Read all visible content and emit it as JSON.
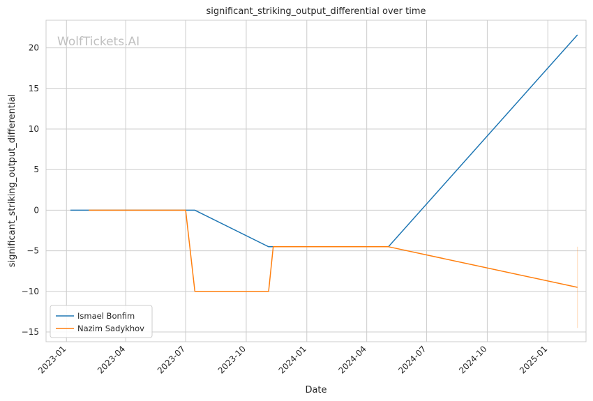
{
  "chart_data": {
    "type": "line",
    "title": "significant_striking_output_differential over time",
    "xlabel": "Date",
    "ylabel": "significant_striking_output_differential",
    "watermark": "WolfTickets.AI",
    "xlim": [
      "2022-12-01",
      "2025-02-28"
    ],
    "ylim": [
      -16.2,
      23.4
    ],
    "x_ticks": [
      "2023-01",
      "2023-04",
      "2023-07",
      "2023-10",
      "2024-01",
      "2024-04",
      "2024-07",
      "2024-10",
      "2025-01"
    ],
    "y_ticks": [
      -15,
      -10,
      -5,
      0,
      5,
      10,
      15,
      20
    ],
    "y_tick_labels": [
      "−15",
      "−10",
      "−5",
      "0",
      "5",
      "10",
      "15",
      "20"
    ],
    "grid": true,
    "legend_position": "lower-left",
    "series": [
      {
        "name": "Ismael Bonfim",
        "color": "#1f77b4",
        "points": [
          {
            "x": "2023-01-07",
            "y": 0
          },
          {
            "x": "2023-07-15",
            "y": 0
          },
          {
            "x": "2023-11-04",
            "y": -4.5
          },
          {
            "x": "2024-05-04",
            "y": -4.5
          },
          {
            "x": "2025-02-15",
            "y": 21.6
          }
        ]
      },
      {
        "name": "Nazim Sadykhov",
        "color": "#ff7f0e",
        "points": [
          {
            "x": "2023-02-04",
            "y": 0
          },
          {
            "x": "2023-07-01",
            "y": 0
          },
          {
            "x": "2023-07-15",
            "y": -10
          },
          {
            "x": "2023-11-04",
            "y": -10
          },
          {
            "x": "2023-11-11",
            "y": -4.5
          },
          {
            "x": "2024-05-04",
            "y": -4.5
          },
          {
            "x": "2025-02-15",
            "y": -9.5
          }
        ]
      }
    ],
    "error_bar": {
      "x": "2025-02-15",
      "y_low": -14.5,
      "y_high": -4.5,
      "color": "#ff7f0e"
    }
  }
}
